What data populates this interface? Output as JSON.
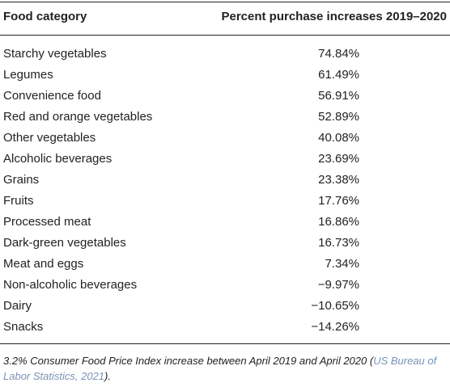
{
  "table": {
    "header": {
      "category": "Food category",
      "value": "Percent purchase increases 2019–2020"
    },
    "rows": [
      {
        "category": "Starchy vegetables",
        "value": "74.84%"
      },
      {
        "category": "Legumes",
        "value": "61.49%"
      },
      {
        "category": "Convenience food",
        "value": "56.91%"
      },
      {
        "category": "Red and orange vegetables",
        "value": "52.89%"
      },
      {
        "category": "Other vegetables",
        "value": "40.08%"
      },
      {
        "category": "Alcoholic beverages",
        "value": "23.69%"
      },
      {
        "category": "Grains",
        "value": "23.38%"
      },
      {
        "category": "Fruits",
        "value": "17.76%"
      },
      {
        "category": "Processed meat",
        "value": "16.86%"
      },
      {
        "category": "Dark-green vegetables",
        "value": "16.73%"
      },
      {
        "category": "Meat and eggs",
        "value": "7.34%"
      },
      {
        "category": "Non-alcoholic beverages",
        "value": "−9.97%"
      },
      {
        "category": "Dairy",
        "value": "−10.65%"
      },
      {
        "category": "Snacks",
        "value": "−14.26%"
      }
    ]
  },
  "footnote": {
    "text": "3.2% Consumer Food Price Index increase between April 2019 and April 2020 (",
    "citation": "US Bureau of Labor Statistics, 2021",
    "suffix": ")."
  },
  "colors": {
    "text": "#222222",
    "rule": "#222222",
    "citation_link": "#7a93b8"
  }
}
